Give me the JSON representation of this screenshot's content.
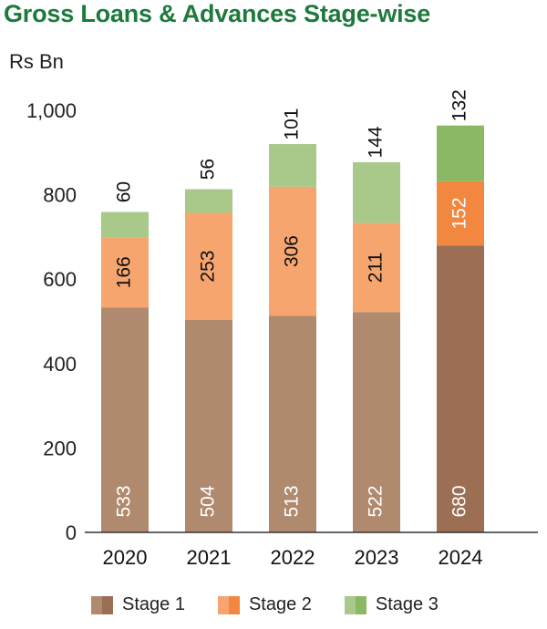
{
  "title": "Gross Loans & Advances Stage-wise",
  "chart_data": {
    "type": "bar",
    "stacked": true,
    "unit_label": "Rs Bn",
    "categories": [
      "2020",
      "2021",
      "2022",
      "2023",
      "2024"
    ],
    "series": [
      {
        "name": "Stage 1",
        "values": [
          533,
          504,
          513,
          522,
          680
        ]
      },
      {
        "name": "Stage 2",
        "values": [
          166,
          253,
          306,
          211,
          152
        ]
      },
      {
        "name": "Stage 3",
        "values": [
          60,
          56,
          101,
          144,
          132
        ]
      }
    ],
    "y_ticks": [
      "0",
      "200",
      "400",
      "600",
      "800",
      "1,000"
    ],
    "ylim": [
      0,
      1000
    ],
    "legend_position": "bottom",
    "colors": {
      "stage1": "#b08a6e",
      "stage2": "#f7a56e",
      "stage3": "#a9c98a",
      "stage1_highlight": "#9c6e53",
      "stage2_highlight": "#f2873f",
      "stage3_highlight": "#8bb863"
    }
  }
}
